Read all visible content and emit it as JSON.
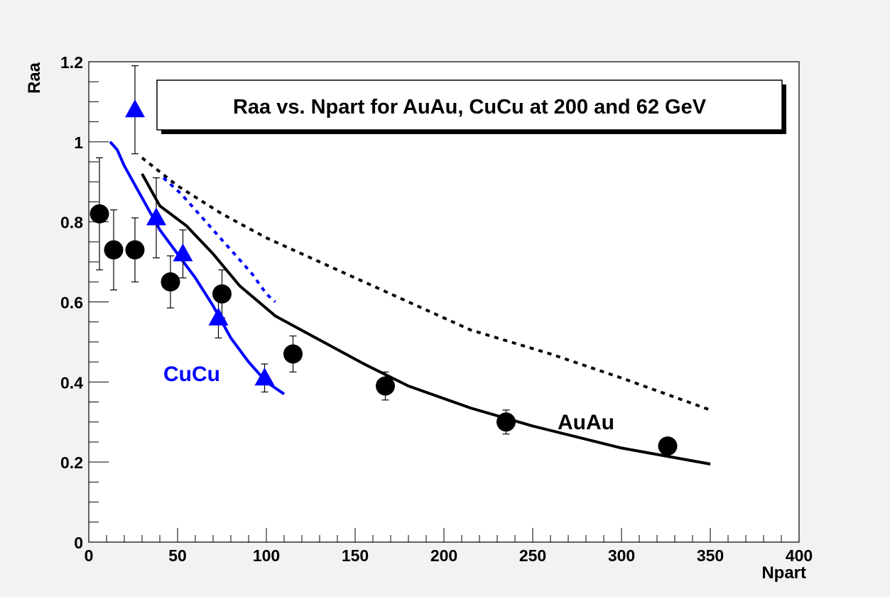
{
  "chart_data": {
    "type": "scatter",
    "title": "Raa vs. Npart for AuAu, CuCu at 200 and 62 GeV",
    "xlabel": "Npart",
    "ylabel": "Raa",
    "xlim": [
      0,
      400
    ],
    "ylim": [
      0,
      1.2
    ],
    "x_ticks": [
      "0",
      "50",
      "100",
      "150",
      "200",
      "250",
      "300",
      "350",
      "400"
    ],
    "y_ticks": [
      "0",
      "0.2",
      "0.4",
      "0.6",
      "0.8",
      "1",
      "1.2"
    ],
    "grid": false,
    "colors": {
      "auau": "#000000",
      "cucu": "#0000ff",
      "frame_bg": "#f2f2f2",
      "plot_bg": "#ffffff"
    },
    "annotations": [
      {
        "text": "CuCu",
        "x": 42,
        "y": 0.42,
        "color": "#0000ff"
      },
      {
        "text": "AuAu",
        "x": 264,
        "y": 0.3,
        "color": "#000000"
      }
    ],
    "points": [
      {
        "marker": "circle",
        "color": "#000000",
        "x": [
          6,
          14,
          26,
          46,
          75,
          115,
          167,
          235,
          326
        ],
        "y": [
          0.82,
          0.73,
          0.73,
          0.65,
          0.62,
          0.47,
          0.39,
          0.3,
          0.24
        ],
        "err": [
          0.14,
          0.1,
          0.08,
          0.065,
          0.06,
          0.045,
          0.035,
          0.03,
          0.02
        ]
      },
      {
        "marker": "triangle",
        "color": "#0000ff",
        "x": [
          26,
          38,
          53,
          73,
          99
        ],
        "y": [
          1.08,
          0.81,
          0.72,
          0.56,
          0.41
        ],
        "err": [
          0.11,
          0.1,
          0.06,
          0.05,
          0.035
        ]
      }
    ],
    "curves": [
      {
        "color": "#000000",
        "style": "solid",
        "x": [
          30,
          40,
          55,
          70,
          85,
          105,
          130,
          155,
          180,
          215,
          250,
          300,
          350
        ],
        "y": [
          0.92,
          0.84,
          0.79,
          0.72,
          0.64,
          0.565,
          0.505,
          0.445,
          0.39,
          0.335,
          0.29,
          0.235,
          0.195
        ]
      },
      {
        "color": "#000000",
        "style": "dashed",
        "x": [
          30,
          50,
          75,
          100,
          130,
          170,
          215,
          260,
          300,
          350
        ],
        "y": [
          0.96,
          0.89,
          0.82,
          0.76,
          0.7,
          0.62,
          0.53,
          0.47,
          0.41,
          0.33
        ]
      },
      {
        "color": "#0000ff",
        "style": "solid",
        "x": [
          12,
          16,
          20,
          30,
          40,
          50,
          60,
          70,
          80,
          90,
          100,
          110
        ],
        "y": [
          1.0,
          0.98,
          0.94,
          0.86,
          0.78,
          0.72,
          0.66,
          0.59,
          0.51,
          0.45,
          0.4,
          0.37
        ]
      },
      {
        "color": "#0000ff",
        "style": "dashed",
        "x": [
          42,
          52,
          62,
          72,
          82,
          92,
          100,
          105
        ],
        "y": [
          0.91,
          0.87,
          0.82,
          0.77,
          0.72,
          0.67,
          0.62,
          0.6
        ]
      }
    ]
  }
}
